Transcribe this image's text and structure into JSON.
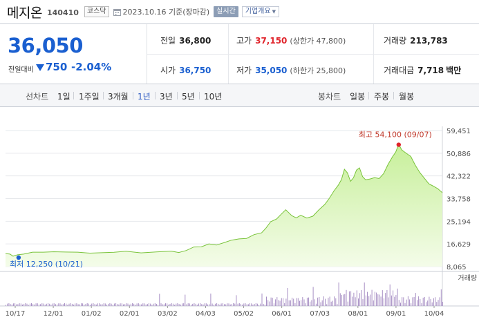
{
  "header": {
    "stock_name": "메지온",
    "stock_code": "140410",
    "market": "코스닥",
    "date_text": "2023.10.16 기준(장마감)",
    "realtime_label": "실시간",
    "overview_label": "기업개요"
  },
  "price": {
    "current": "36,050",
    "prev_label": "전일대비",
    "change": "750",
    "change_pct": "-2.04%",
    "direction": "down"
  },
  "quote": {
    "prev_close_label": "전일",
    "prev_close": "36,800",
    "high_label": "고가",
    "high": "37,150",
    "upper_limit": "(상한가 47,800)",
    "volume_label": "거래량",
    "volume": "213,783",
    "open_label": "시가",
    "open": "36,750",
    "low_label": "저가",
    "low": "35,050",
    "lower_limit": "(하한가 25,800)",
    "amount_label": "거래대금",
    "amount": "7,718",
    "amount_unit": "백만"
  },
  "period_bar": {
    "line_label": "선차트",
    "line_options": [
      "1일",
      "1주일",
      "3개월",
      "1년",
      "3년",
      "5년",
      "10년"
    ],
    "active_option": "1년",
    "candle_label": "봉차트",
    "candle_options": [
      "일봉",
      "주봉",
      "월봉"
    ]
  },
  "colors": {
    "up": "#e0242b",
    "down": "#1a5fd0",
    "line": "#79c33a",
    "fill_top": "#c7ef9a",
    "fill_bottom": "#f4fce9"
  },
  "chart_data": {
    "type": "area",
    "y_ticks": [
      "59,451",
      "50,886",
      "42,322",
      "33,758",
      "25,194",
      "16,629",
      "8,065"
    ],
    "ylim": [
      8065,
      59451
    ],
    "x_ticks": [
      "10/17",
      "12/01",
      "01/02",
      "02/01",
      "03/02",
      "04/03",
      "05/02",
      "06/01",
      "07/03",
      "08/01",
      "09/01",
      "10/04"
    ],
    "price_series": [
      [
        0,
        13000
      ],
      [
        3,
        12500
      ],
      [
        5,
        12250
      ],
      [
        8,
        12800
      ],
      [
        12,
        13100
      ],
      [
        18,
        13300
      ],
      [
        25,
        13200
      ],
      [
        32,
        13400
      ],
      [
        40,
        13300
      ],
      [
        48,
        13500
      ],
      [
        56,
        13400
      ],
      [
        64,
        13600
      ],
      [
        72,
        13500
      ],
      [
        80,
        13600
      ],
      [
        90,
        13500
      ],
      [
        100,
        13700
      ],
      [
        110,
        13600
      ],
      [
        115,
        13600
      ],
      [
        120,
        14200
      ],
      [
        125,
        15200
      ],
      [
        130,
        15800
      ],
      [
        135,
        16600
      ],
      [
        140,
        16000
      ],
      [
        145,
        17400
      ],
      [
        150,
        17900
      ],
      [
        155,
        18400
      ],
      [
        160,
        19000
      ],
      [
        165,
        19900
      ],
      [
        170,
        20800
      ],
      [
        173,
        22400
      ],
      [
        176,
        24800
      ],
      [
        180,
        25800
      ],
      [
        183,
        27800
      ],
      [
        186,
        29800
      ],
      [
        190,
        27500
      ],
      [
        193,
        26800
      ],
      [
        196,
        27500
      ],
      [
        200,
        26600
      ],
      [
        204,
        27400
      ],
      [
        208,
        29800
      ],
      [
        212,
        31800
      ],
      [
        215,
        34200
      ],
      [
        218,
        36600
      ],
      [
        221,
        38600
      ],
      [
        223,
        41200
      ],
      [
        225,
        44600
      ],
      [
        227,
        43600
      ],
      [
        229,
        40200
      ],
      [
        231,
        41600
      ],
      [
        233,
        44600
      ],
      [
        235,
        45200
      ],
      [
        237,
        42300
      ],
      [
        239,
        40600
      ],
      [
        242,
        41200
      ],
      [
        245,
        42000
      ],
      [
        248,
        41500
      ],
      [
        251,
        43000
      ],
      [
        254,
        46400
      ],
      [
        257,
        49600
      ],
      [
        259,
        51400
      ],
      [
        260,
        53000
      ],
      [
        261,
        54100
      ],
      [
        263,
        52400
      ],
      [
        266,
        50800
      ],
      [
        269,
        49400
      ],
      [
        272,
        46200
      ],
      [
        275,
        43800
      ],
      [
        278,
        41800
      ],
      [
        281,
        39400
      ],
      [
        284,
        38200
      ],
      [
        287,
        37200
      ],
      [
        290,
        36050
      ]
    ],
    "high_annotation": "최고 54,100 (09/07)",
    "low_annotation": "최저 12,250 (10/21)",
    "volume_label": "거래량",
    "grid": "horizontal"
  }
}
